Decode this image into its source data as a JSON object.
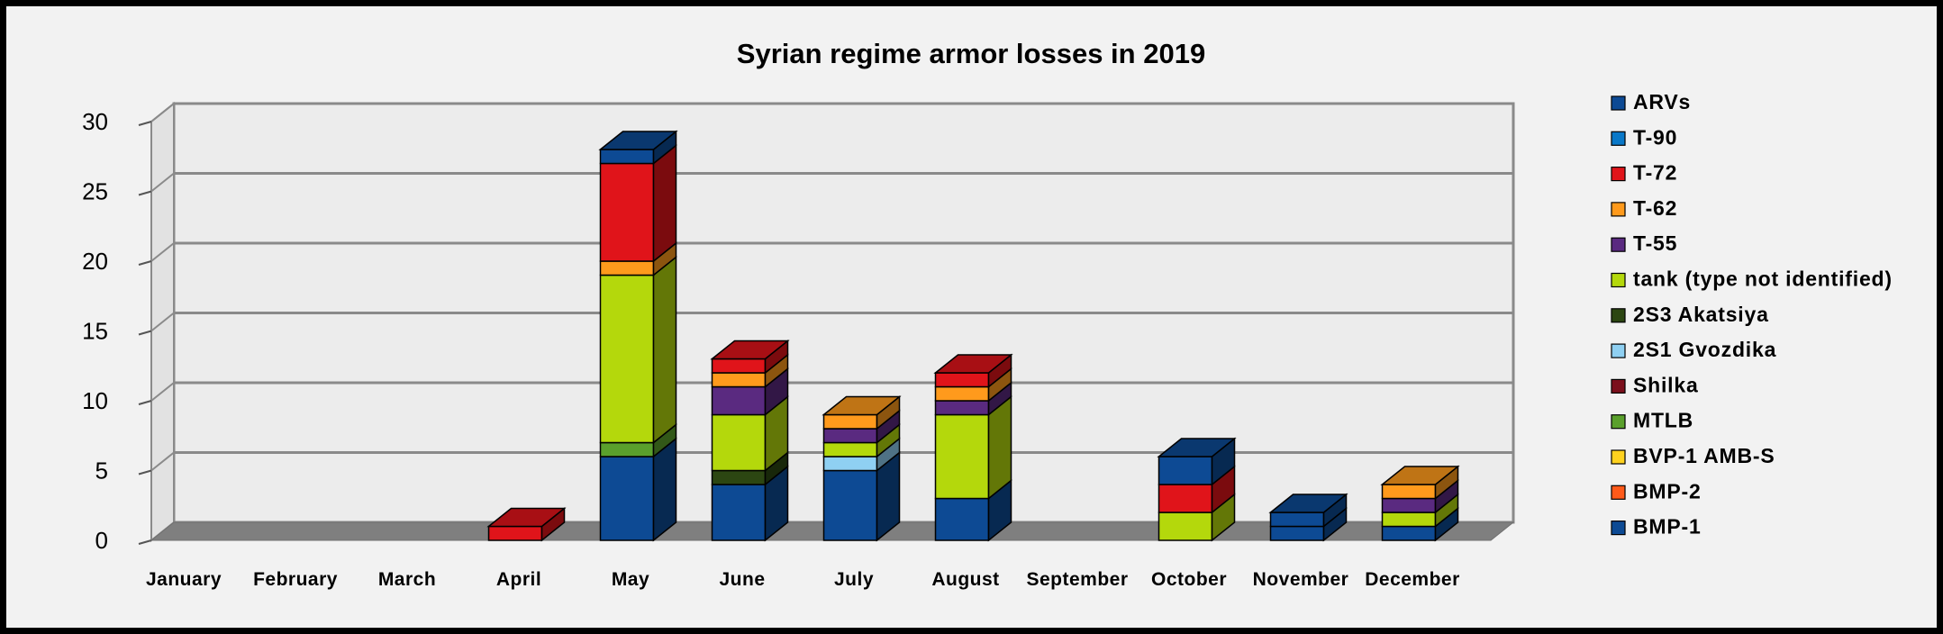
{
  "chart_data": {
    "type": "bar",
    "stacked": true,
    "style": "3d",
    "title": "Syrian regime armor losses in 2019",
    "xlabel": "",
    "ylabel": "",
    "ylim": [
      0,
      30
    ],
    "yticks": [
      "0",
      "5",
      "10",
      "15",
      "20",
      "25",
      "30"
    ],
    "grid": true,
    "legend_position": "right",
    "categories": [
      "January",
      "February",
      "March",
      "April",
      "May",
      "June",
      "July",
      "August",
      "September",
      "October",
      "November",
      "December"
    ],
    "series": [
      {
        "name": "BMP-1",
        "color": "#0d4a94",
        "values": [
          0,
          0,
          0,
          0,
          6,
          4,
          5,
          3,
          0,
          0,
          1,
          1
        ]
      },
      {
        "name": "BMP-2",
        "color": "#ff5a1a",
        "values": [
          0,
          0,
          0,
          0,
          0,
          0,
          0,
          0,
          0,
          0,
          0,
          0
        ]
      },
      {
        "name": "BVP-1 AMB-S",
        "color": "#ffd21f",
        "values": [
          0,
          0,
          0,
          0,
          0,
          0,
          0,
          0,
          0,
          0,
          0,
          0
        ]
      },
      {
        "name": "MTLB",
        "color": "#5aa02c",
        "values": [
          0,
          0,
          0,
          0,
          1,
          0,
          0,
          0,
          0,
          0,
          0,
          0
        ]
      },
      {
        "name": "Shilka",
        "color": "#7b0f1c",
        "values": [
          0,
          0,
          0,
          0,
          0,
          0,
          0,
          0,
          0,
          0,
          0,
          0
        ]
      },
      {
        "name": "2S1 Gvozdika",
        "color": "#8fd0f2",
        "values": [
          0,
          0,
          0,
          0,
          0,
          0,
          1,
          0,
          0,
          0,
          0,
          0
        ]
      },
      {
        "name": "2S3 Akatsiya",
        "color": "#2c4612",
        "values": [
          0,
          0,
          0,
          0,
          0,
          1,
          0,
          0,
          0,
          0,
          0,
          0
        ]
      },
      {
        "name": "tank (type not identified)",
        "color": "#b4d80c",
        "values": [
          0,
          0,
          0,
          0,
          12,
          4,
          1,
          6,
          0,
          2,
          0,
          1
        ]
      },
      {
        "name": "T-55",
        "color": "#5a2a80",
        "values": [
          0,
          0,
          0,
          0,
          0,
          2,
          1,
          1,
          0,
          0,
          0,
          1
        ]
      },
      {
        "name": "T-62",
        "color": "#ff9a1c",
        "values": [
          0,
          0,
          0,
          0,
          1,
          1,
          1,
          1,
          0,
          0,
          0,
          1
        ]
      },
      {
        "name": "T-72",
        "color": "#e0141a",
        "values": [
          0,
          0,
          0,
          1,
          7,
          1,
          0,
          1,
          0,
          2,
          0,
          0
        ]
      },
      {
        "name": "T-90",
        "color": "#0a78c8",
        "values": [
          0,
          0,
          0,
          0,
          0,
          0,
          0,
          0,
          0,
          0,
          0,
          0
        ]
      },
      {
        "name": "ARVs",
        "color": "#0d4a94",
        "values": [
          0,
          0,
          0,
          0,
          1,
          0,
          0,
          0,
          0,
          2,
          1,
          0
        ]
      }
    ]
  }
}
